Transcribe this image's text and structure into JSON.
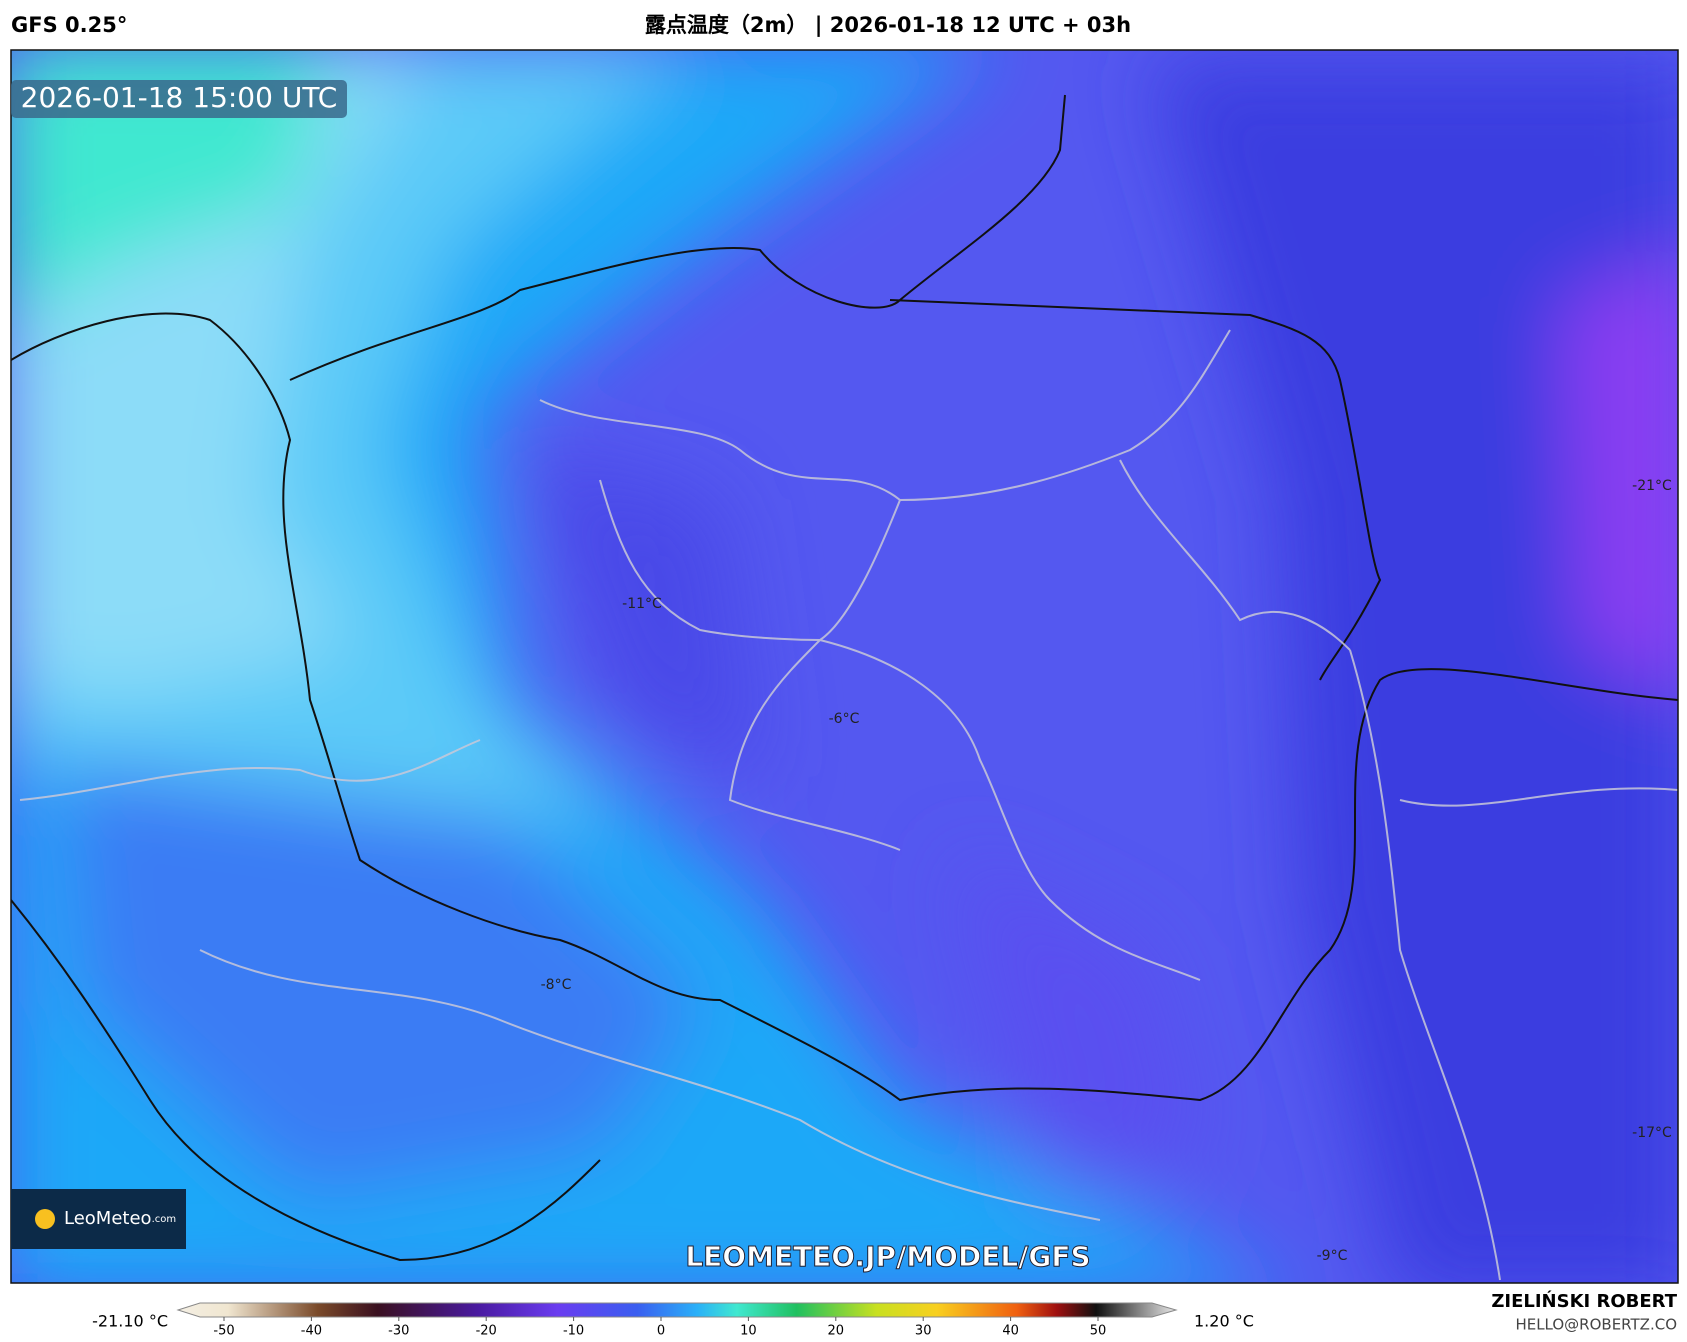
{
  "header": {
    "model": "GFS 0.25°",
    "title": "露点温度（2m） | 2026-01-18 12 UTC + 03h"
  },
  "map": {
    "timestamp": "2026-01-18 15:00 UTC",
    "contour_labels": [
      "-11°C",
      "-6°C",
      "-8°C",
      "-21°C",
      "-17°C",
      "-9°C"
    ],
    "logo": {
      "name": "LeoMeteo",
      "suffix": ".com"
    },
    "watermark": "LEOMETEO.JP/MODEL/GFS"
  },
  "legend": {
    "min_label": "-21.10 °C",
    "max_label": "1.20 °C",
    "ticks": [
      -50,
      -40,
      -30,
      -20,
      -10,
      0,
      10,
      20,
      30,
      40,
      50
    ]
  },
  "credit": {
    "author": "ZIELIŃSKI ROBERT",
    "email": "HELLO@ROBERTZ.CO"
  }
}
